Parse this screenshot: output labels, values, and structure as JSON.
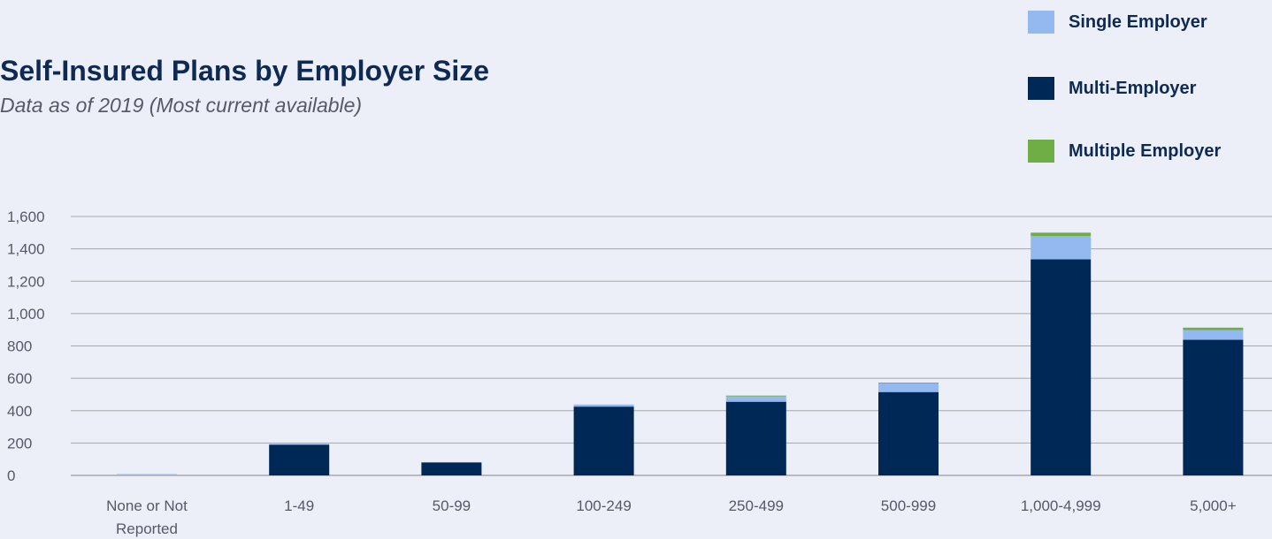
{
  "title": "Self-Insured Plans by Employer Size",
  "subtitle": "Data as of 2019 (Most current available)",
  "colors": {
    "background": "#eceff8",
    "title": "#0f2a52",
    "single_employer": "#94b8f0",
    "multi_employer": "#002856",
    "multiple_employer": "#6fae45",
    "gridline": "#a6a8ad"
  },
  "legend": [
    {
      "label": "Single Employer",
      "color": "#94b8f0"
    },
    {
      "label": "Multi-Employer",
      "color": "#002856"
    },
    {
      "label": "Multiple Employer",
      "color": "#6fae45"
    }
  ],
  "chart_data": {
    "type": "bar",
    "stacked": true,
    "categories": [
      "None or Not Reported",
      "1-49",
      "50-99",
      "100-249",
      "250-499",
      "500-999",
      "1,000-4,999",
      "5,000+"
    ],
    "series": [
      {
        "name": "Multi-Employer",
        "color": "#002856",
        "values": [
          0,
          190,
          80,
          425,
          455,
          515,
          1335,
          838
        ]
      },
      {
        "name": "Single Employer",
        "color": "#94b8f0",
        "values": [
          8,
          5,
          2,
          13,
          33,
          53,
          145,
          60
        ]
      },
      {
        "name": "Multiple Employer",
        "color": "#6fae45",
        "values": [
          0,
          0,
          0,
          0,
          5,
          5,
          20,
          15
        ]
      }
    ],
    "yticks": [
      "0",
      "200",
      "400",
      "600",
      "800",
      "1,000",
      "1,200",
      "1,400",
      "1,600"
    ],
    "ylim": [
      0,
      1600
    ],
    "grid": true,
    "legend_position": "top-right"
  }
}
